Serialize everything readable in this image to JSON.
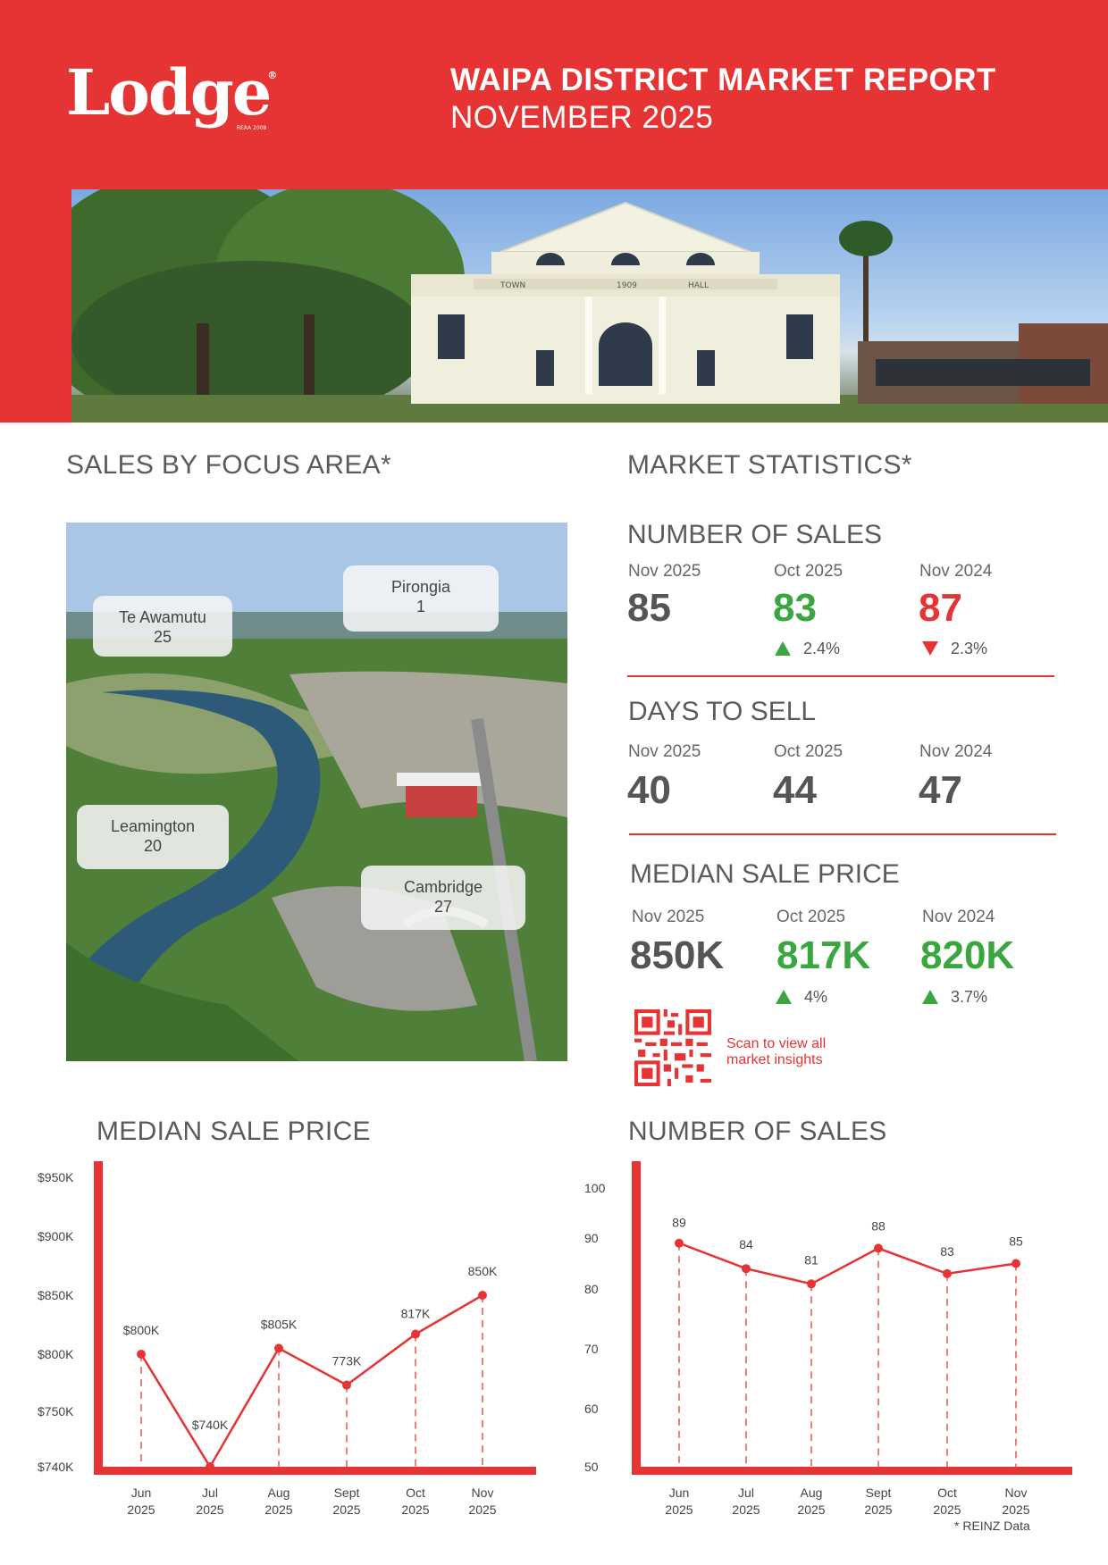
{
  "header": {
    "logo": "Lodge",
    "logo_reg": "®",
    "logo_reaa": "REAA 2008",
    "title": "WAIPA DISTRICT MARKET REPORT",
    "subtitle": "NOVEMBER 2025",
    "brand_color": "#e63333"
  },
  "hero": {
    "sign_text": [
      "TOWN",
      "1909",
      "HALL"
    ]
  },
  "focus": {
    "title": "SALES BY FOCUS AREA*",
    "areas": [
      {
        "name": "Te Awamutu",
        "sales": "25"
      },
      {
        "name": "Pirongia",
        "sales": "1"
      },
      {
        "name": "Leamington",
        "sales": "20"
      },
      {
        "name": "Cambridge",
        "sales": "27"
      }
    ]
  },
  "stats": {
    "title": "MARKET STATISTICS*",
    "number_of_sales": {
      "heading": "NUMBER OF SALES",
      "cols": [
        "Nov 2025",
        "Oct 2025",
        "Nov 2024"
      ],
      "values": [
        "85",
        "83",
        "87"
      ],
      "deltas": [
        "",
        "2.4%",
        "2.3%"
      ]
    },
    "days_to_sell": {
      "heading": "DAYS TO SELL",
      "cols": [
        "Nov 2025",
        "Oct 2025",
        "Nov 2024"
      ],
      "values": [
        "40",
        "44",
        "47"
      ]
    },
    "median_sale_price": {
      "heading": "MEDIAN SALE PRICE",
      "cols": [
        "Nov 2025",
        "Oct 2025",
        "Nov 2024"
      ],
      "values": [
        "850K",
        "817K",
        "820K"
      ],
      "deltas": [
        "",
        "4%",
        "3.7%"
      ]
    },
    "qr_text": [
      "Scan to view all",
      "market insights"
    ],
    "colors": {
      "up": "#3aa640",
      "down": "#e63333"
    }
  },
  "chart_data": [
    {
      "type": "line",
      "title": "MEDIAN SALE PRICE",
      "categories": [
        [
          "Jun",
          "2025"
        ],
        [
          "Jul",
          "2025"
        ],
        [
          "Aug",
          "2025"
        ],
        [
          "Sept",
          "2025"
        ],
        [
          "Oct",
          "2025"
        ],
        [
          "Nov",
          "2025"
        ]
      ],
      "values": [
        800,
        740,
        805,
        773,
        817,
        850
      ],
      "data_labels": [
        "$800K",
        "$740K",
        "$805K",
        "773K",
        "817K",
        "850K"
      ],
      "y_ticks": [
        740,
        750,
        800,
        850,
        900,
        950
      ],
      "y_tick_labels": [
        "$740K",
        "$750K",
        "$800K",
        "$850K",
        "$900K",
        "$950K"
      ],
      "ylim": [
        740,
        950
      ]
    },
    {
      "type": "line",
      "title": "NUMBER OF SALES",
      "categories": [
        [
          "Jun",
          "2025"
        ],
        [
          "Jul",
          "2025"
        ],
        [
          "Aug",
          "2025"
        ],
        [
          "Sept",
          "2025"
        ],
        [
          "Oct",
          "2025"
        ],
        [
          "Nov",
          "2025"
        ]
      ],
      "values": [
        89,
        84,
        81,
        88,
        83,
        85
      ],
      "data_labels": [
        "89",
        "84",
        "81",
        "88",
        "83",
        "85"
      ],
      "y_ticks": [
        50,
        60,
        70,
        80,
        90,
        100
      ],
      "y_tick_labels": [
        "50",
        "60",
        "70",
        "80",
        "90",
        "100"
      ],
      "ylim": [
        50,
        100
      ]
    }
  ],
  "footnote": "* REINZ Data"
}
